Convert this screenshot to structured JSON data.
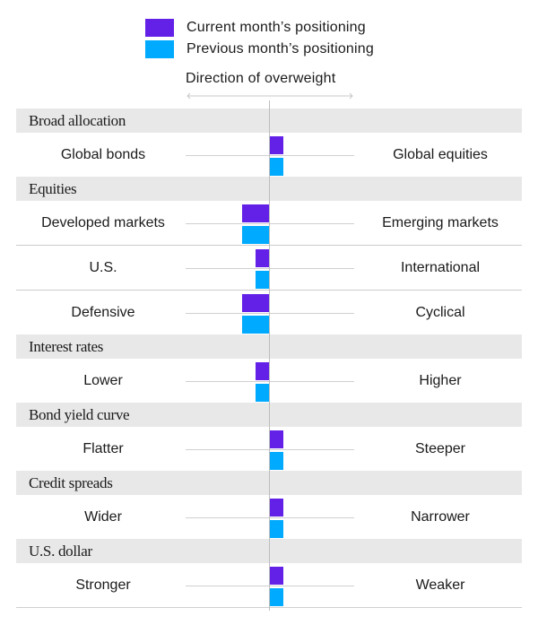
{
  "legend": {
    "current": {
      "label": "Current month’s positioning",
      "color": "#6321e8"
    },
    "previous": {
      "label": "Previous month’s positioning",
      "color": "#00aaff"
    }
  },
  "direction_label": "Direction of overweight",
  "chart_data": {
    "type": "bar",
    "orientation": "horizontal-diverging",
    "title": "",
    "xlabel": "Direction of overweight",
    "scale_note": "Negative = tilt toward left label, positive = tilt toward right label; units are relative notches (~15px each)",
    "xlim": [
      -6,
      6
    ],
    "legend_position": "top",
    "series_names": [
      "Current month’s positioning",
      "Previous month’s positioning"
    ],
    "sections": [
      {
        "name": "Broad allocation",
        "rows": [
          {
            "left": "Global bonds",
            "right": "Global equities",
            "current": 1,
            "previous": 1
          }
        ]
      },
      {
        "name": "Equities",
        "rows": [
          {
            "left": "Developed markets",
            "right": "Emerging markets",
            "current": -2,
            "previous": -2
          },
          {
            "left": "U.S.",
            "right": "International",
            "current": -1,
            "previous": -1
          },
          {
            "left": "Defensive",
            "right": "Cyclical",
            "current": -2,
            "previous": -2
          }
        ]
      },
      {
        "name": "Interest rates",
        "rows": [
          {
            "left": "Lower",
            "right": "Higher",
            "current": -1,
            "previous": -1
          }
        ]
      },
      {
        "name": "Bond yield curve",
        "rows": [
          {
            "left": "Flatter",
            "right": "Steeper",
            "current": 1,
            "previous": 1
          }
        ]
      },
      {
        "name": "Credit spreads",
        "rows": [
          {
            "left": "Wider",
            "right": "Narrower",
            "current": 1,
            "previous": 1
          }
        ]
      },
      {
        "name": "U.S. dollar",
        "rows": [
          {
            "left": "Stronger",
            "right": "Weaker",
            "current": 1,
            "previous": 1
          }
        ]
      }
    ]
  }
}
